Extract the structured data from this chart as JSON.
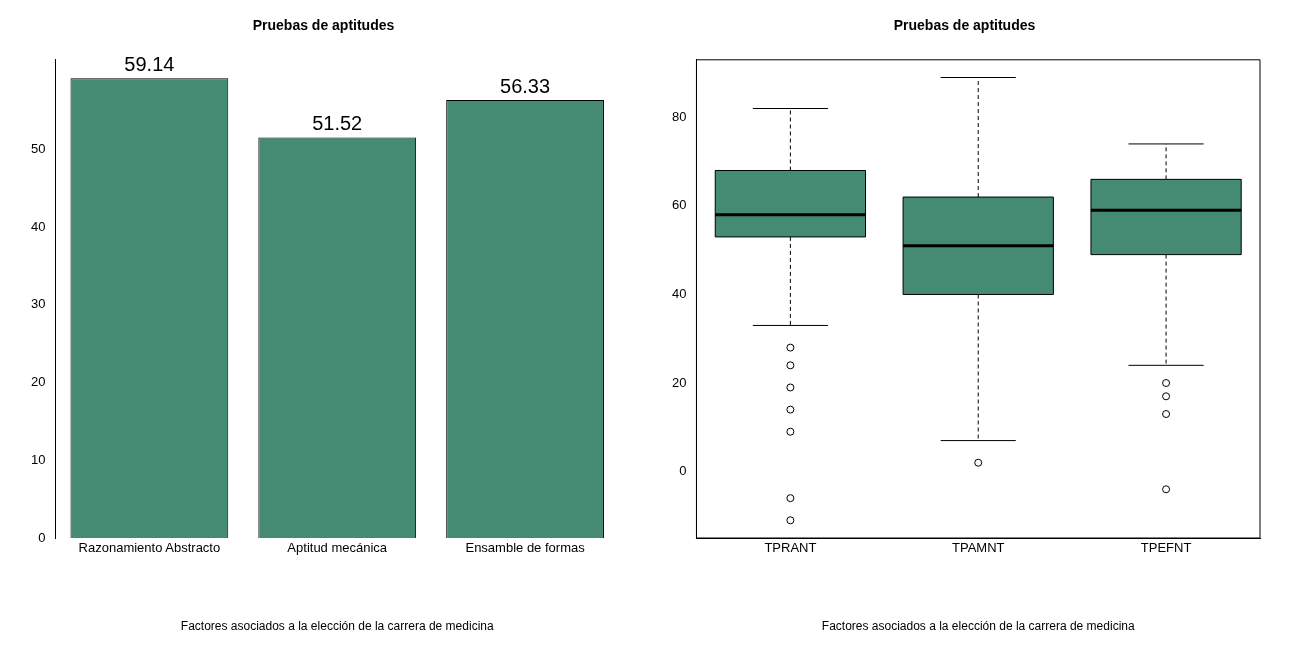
{
  "chart_data": [
    {
      "type": "bar",
      "title": "Pruebas de aptitudes",
      "xlabel": "Factores asociados a la elección de la carrera de medicina",
      "categories": [
        "Razonamiento Abstracto",
        "Aptitud mecánica",
        "Ensamble de formas"
      ],
      "values": [
        59.14,
        51.52,
        56.33
      ],
      "color": "#458b74",
      "ylim": [
        0,
        61.5
      ],
      "yticks": [
        0,
        10,
        20,
        30,
        40,
        50
      ],
      "data_labels": true
    },
    {
      "type": "box",
      "title": "Pruebas de aptitudes",
      "xlabel": "Factores asociados a la elección de la carrera de medicina",
      "categories": [
        "TPRANT",
        "TPAMNT",
        "TPEFNT"
      ],
      "color": "#458b74",
      "marker": "circle",
      "ylim": [
        -15,
        93
      ],
      "yticks": [
        0,
        20,
        40,
        60,
        80
      ],
      "boxes": [
        {
          "low": 33,
          "q1": 53,
          "median": 58,
          "q3": 68,
          "high": 82,
          "outliers": [
            28,
            24,
            19,
            14,
            9,
            -6,
            -11
          ]
        },
        {
          "low": 7,
          "q1": 40,
          "median": 51,
          "q3": 62,
          "high": 89,
          "outliers": [
            2
          ]
        },
        {
          "low": 24,
          "q1": 49,
          "median": 59,
          "q3": 66,
          "high": 74,
          "outliers": [
            20,
            17,
            13,
            -4
          ]
        }
      ]
    }
  ]
}
